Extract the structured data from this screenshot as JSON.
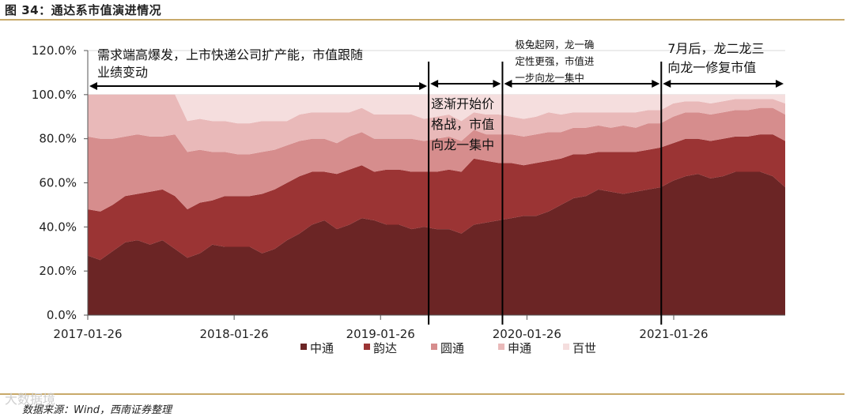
{
  "figure": {
    "title": "图 34：通达系市值演进情况",
    "source": "数据来源：Wind，西南证券整理",
    "watermark": "大数据境"
  },
  "chart_data": {
    "type": "area",
    "stacked": true,
    "percent": true,
    "ylim": [
      0,
      120
    ],
    "y_ticks": [
      "0.0%",
      "20.0%",
      "40.0%",
      "60.0%",
      "80.0%",
      "100.0%",
      "120.0%"
    ],
    "x_tick_labels": [
      "2017-01-26",
      "2018-01-26",
      "2019-01-26",
      "2020-01-26",
      "2021-01-26"
    ],
    "x_start": "2017-01-26",
    "x_end": "2021-10-31",
    "x_step": "monthly",
    "legend_position": "bottom",
    "colors": [
      "#6b2525",
      "#9b3434",
      "#d68d8d",
      "#e9b9b9",
      "#f5dede"
    ],
    "series": [
      {
        "name": "中通",
        "values": [
          27,
          25,
          29,
          33,
          34,
          32,
          34,
          30,
          26,
          28,
          32,
          31,
          31,
          31,
          28,
          30,
          34,
          37,
          41,
          43,
          39,
          41,
          44,
          43,
          41,
          41,
          39,
          40,
          39,
          39,
          37,
          41,
          42,
          43,
          44,
          45,
          45,
          47,
          50,
          53,
          54,
          57,
          56,
          55,
          56,
          57,
          58,
          61,
          63,
          64,
          62,
          63,
          65,
          65,
          65,
          63,
          58
        ]
      },
      {
        "name": "韵达",
        "values": [
          21,
          22,
          21,
          21,
          21,
          24,
          23,
          24,
          22,
          23,
          20,
          23,
          23,
          23,
          27,
          27,
          26,
          26,
          24,
          22,
          25,
          25,
          24,
          22,
          25,
          25,
          26,
          25,
          26,
          27,
          28,
          30,
          28,
          26,
          25,
          23,
          24,
          23,
          21,
          20,
          19,
          17,
          18,
          19,
          18,
          18,
          18,
          17,
          17,
          16,
          17,
          17,
          16,
          16,
          17,
          19,
          21
        ]
      },
      {
        "name": "圆通",
        "values": [
          33,
          33,
          30,
          27,
          27,
          25,
          24,
          28,
          26,
          24,
          22,
          20,
          19,
          19,
          19,
          18,
          17,
          16,
          15,
          15,
          14,
          15,
          15,
          15,
          14,
          14,
          15,
          14,
          15,
          15,
          14,
          13,
          12,
          13,
          13,
          13,
          13,
          13,
          12,
          12,
          12,
          12,
          11,
          12,
          11,
          12,
          11,
          12,
          12,
          12,
          12,
          12,
          12,
          12,
          12,
          12,
          12
        ]
      },
      {
        "name": "申通",
        "values": [
          19,
          20,
          20,
          19,
          18,
          19,
          19,
          18,
          14,
          14,
          14,
          14,
          14,
          14,
          14,
          13,
          11,
          12,
          12,
          12,
          14,
          11,
          11,
          11,
          11,
          11,
          11,
          10,
          10,
          10,
          9,
          8,
          9,
          9,
          8,
          8,
          8,
          9,
          8,
          7,
          7,
          6,
          7,
          6,
          7,
          6,
          6,
          6,
          5,
          5,
          5,
          5,
          5,
          5,
          4,
          4,
          5
        ]
      },
      {
        "name": "百世",
        "values": [
          0,
          0,
          0,
          0,
          0,
          0,
          0,
          0,
          12,
          11,
          12,
          12,
          13,
          13,
          12,
          12,
          12,
          9,
          8,
          8,
          8,
          8,
          6,
          9,
          9,
          9,
          9,
          11,
          10,
          9,
          12,
          8,
          9,
          9,
          10,
          11,
          10,
          8,
          9,
          8,
          8,
          8,
          8,
          8,
          8,
          7,
          7,
          4,
          3,
          3,
          4,
          3,
          2,
          2,
          2,
          2,
          4
        ]
      }
    ],
    "phase_dividers": [
      "2019-05-26",
      "2019-11-26",
      "2020-12-26"
    ],
    "annotations": [
      {
        "lines": [
          "需求端高爆发，上市快递公司扩产能，市值跟随",
          "业绩变动"
        ]
      },
      {
        "lines": [
          "逐渐开始价",
          "格战，市值",
          "向龙一集中"
        ]
      },
      {
        "lines": [
          "极兔起网，龙一确",
          "定性更强，市值进",
          "一步向龙一集中"
        ]
      },
      {
        "lines": [
          "7月后，龙二龙三",
          "向龙一修复市值"
        ]
      }
    ]
  }
}
